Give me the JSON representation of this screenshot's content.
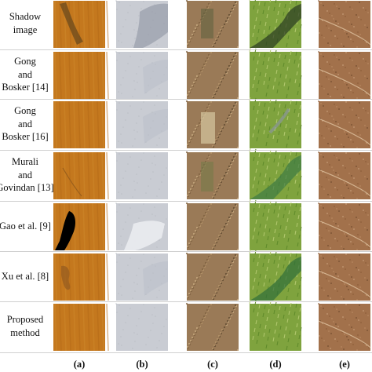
{
  "row_labels": [
    [
      "Shadow",
      "image"
    ],
    [
      "Gong",
      "and",
      "Bosker [14]"
    ],
    [
      "Gong",
      "and",
      "Bosker [16]"
    ],
    [
      "Murali",
      "and",
      "Govindan [13]"
    ],
    [
      "Gao et al. [9]"
    ],
    [
      "Xu et al. [8]"
    ],
    [
      "Proposed",
      "method"
    ]
  ],
  "column_labels": [
    "(a)",
    "(b)",
    "(c)",
    "(d)",
    "(e)"
  ],
  "column_colors": {
    "a": "#c4781e",
    "b": "#c9ccd3",
    "c": "#9a7a57",
    "d": "#7fa33e",
    "e": "#a2714b"
  }
}
